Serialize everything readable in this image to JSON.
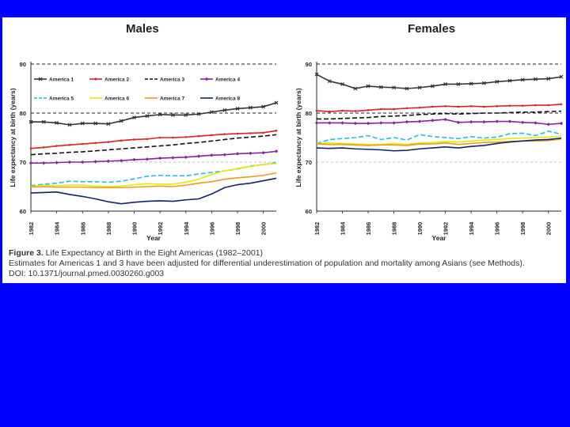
{
  "chart_data": [
    {
      "type": "line",
      "title": "Males",
      "xlabel": "Year",
      "ylabel": "Life expectancy at birth (years)",
      "ylim": [
        60,
        90
      ],
      "xlim": [
        1982,
        2001
      ],
      "yticks": [
        "90",
        "80",
        "70",
        "60"
      ],
      "xticks": [
        "1982",
        "1984",
        "1986",
        "1988",
        "1990",
        "1992",
        "1994",
        "1996",
        "1998",
        "2000"
      ],
      "legend": [
        "America 1",
        "America 2",
        "America 3",
        "America 4",
        "America 5",
        "America 6",
        "America 7",
        "America 8"
      ],
      "x": [
        1982,
        1983,
        1984,
        1985,
        1986,
        1987,
        1988,
        1989,
        1990,
        1991,
        1992,
        1993,
        1994,
        1995,
        1996,
        1997,
        1998,
        1999,
        2000,
        2001
      ],
      "series": [
        {
          "name": "America 1",
          "color": "#333333",
          "dash": "solid",
          "marker": "x",
          "values": [
            78.2,
            78.2,
            78.0,
            77.6,
            77.9,
            77.9,
            77.8,
            78.4,
            79.1,
            79.4,
            79.7,
            79.6,
            79.6,
            79.8,
            80.2,
            80.6,
            80.9,
            81.1,
            81.3,
            82.1
          ]
        },
        {
          "name": "America 2",
          "color": "#dd2222",
          "dash": "solid",
          "marker": "dot",
          "values": [
            72.8,
            73.0,
            73.3,
            73.5,
            73.7,
            73.9,
            74.1,
            74.4,
            74.6,
            74.7,
            75.0,
            75.0,
            75.1,
            75.3,
            75.5,
            75.7,
            75.8,
            75.9,
            76.0,
            76.4
          ]
        },
        {
          "name": "America 3",
          "color": "#111111",
          "dash": "dash",
          "marker": "none",
          "values": [
            71.5,
            71.7,
            71.8,
            72.0,
            72.1,
            72.3,
            72.5,
            72.7,
            72.9,
            73.1,
            73.3,
            73.5,
            73.8,
            74.0,
            74.3,
            74.6,
            74.9,
            75.1,
            75.3,
            75.6
          ]
        },
        {
          "name": "America 4",
          "color": "#882299",
          "dash": "solid",
          "marker": "diamond",
          "values": [
            69.8,
            69.8,
            69.9,
            70.0,
            70.0,
            70.1,
            70.2,
            70.3,
            70.5,
            70.6,
            70.8,
            70.9,
            71.0,
            71.2,
            71.4,
            71.5,
            71.7,
            71.8,
            71.9,
            72.2
          ]
        },
        {
          "name": "America 5",
          "color": "#22bbee",
          "dash": "dash",
          "marker": "none",
          "values": [
            65.2,
            65.5,
            65.7,
            66.1,
            66.0,
            66.0,
            65.9,
            66.1,
            66.6,
            67.1,
            67.3,
            67.2,
            67.2,
            67.6,
            67.9,
            68.2,
            68.6,
            69.2,
            69.5,
            69.9
          ]
        },
        {
          "name": "America 6",
          "color": "#e8e800",
          "dash": "solid",
          "marker": "none",
          "values": [
            65.0,
            65.3,
            65.2,
            65.3,
            65.3,
            65.1,
            65.0,
            65.1,
            65.4,
            65.6,
            65.5,
            65.5,
            65.9,
            66.5,
            67.5,
            68.2,
            68.7,
            69.1,
            69.5,
            69.7
          ]
        },
        {
          "name": "America 7",
          "color": "#ee9922",
          "dash": "solid",
          "marker": "none",
          "values": [
            64.9,
            65.0,
            64.9,
            64.9,
            64.9,
            64.8,
            64.8,
            64.8,
            64.9,
            65.0,
            65.1,
            65.0,
            65.3,
            65.7,
            66.0,
            66.5,
            66.8,
            67.0,
            67.3,
            67.8
          ]
        },
        {
          "name": "America 8",
          "color": "#112266",
          "dash": "solid",
          "marker": "none",
          "values": [
            63.7,
            63.8,
            63.9,
            63.4,
            63.0,
            62.5,
            61.9,
            61.5,
            61.8,
            62.0,
            62.1,
            62.0,
            62.3,
            62.5,
            63.5,
            64.8,
            65.4,
            65.7,
            66.2,
            66.7
          ]
        }
      ]
    },
    {
      "type": "line",
      "title": "Females",
      "xlabel": "Year",
      "ylabel": "Life expectancy at birth (years)",
      "ylim": [
        60,
        90
      ],
      "xlim": [
        1982,
        2001
      ],
      "yticks": [
        "90",
        "80",
        "70",
        "60"
      ],
      "xticks": [
        "1982",
        "1984",
        "1986",
        "1988",
        "1990",
        "1992",
        "1994",
        "1996",
        "1998",
        "2000"
      ],
      "x": [
        1982,
        1983,
        1984,
        1985,
        1986,
        1987,
        1988,
        1989,
        1990,
        1991,
        1992,
        1993,
        1994,
        1995,
        1996,
        1997,
        1998,
        1999,
        2000,
        2001
      ],
      "series": [
        {
          "name": "America 1",
          "color": "#333333",
          "dash": "solid",
          "marker": "x",
          "values": [
            87.9,
            86.5,
            85.9,
            85.0,
            85.5,
            85.3,
            85.2,
            85.0,
            85.2,
            85.5,
            85.9,
            85.9,
            86.0,
            86.1,
            86.4,
            86.6,
            86.8,
            86.9,
            87.0,
            87.4
          ]
        },
        {
          "name": "America 2",
          "color": "#dd2222",
          "dash": "solid",
          "marker": "dot",
          "values": [
            80.5,
            80.3,
            80.5,
            80.4,
            80.6,
            80.8,
            80.8,
            81.0,
            81.1,
            81.3,
            81.4,
            81.3,
            81.4,
            81.3,
            81.4,
            81.5,
            81.5,
            81.6,
            81.6,
            81.8
          ]
        },
        {
          "name": "America 3",
          "color": "#111111",
          "dash": "dash",
          "marker": "none",
          "values": [
            78.8,
            78.8,
            78.9,
            79.0,
            79.1,
            79.3,
            79.4,
            79.5,
            79.7,
            79.8,
            79.9,
            79.8,
            79.9,
            80.0,
            80.0,
            80.1,
            80.2,
            80.2,
            80.3,
            80.4
          ]
        },
        {
          "name": "America 4",
          "color": "#882299",
          "dash": "solid",
          "marker": "diamond",
          "values": [
            78.0,
            78.0,
            78.0,
            77.9,
            77.9,
            78.0,
            78.0,
            78.2,
            78.3,
            78.5,
            78.7,
            78.1,
            78.2,
            78.2,
            78.3,
            78.3,
            78.1,
            78.0,
            77.7,
            77.9
          ]
        },
        {
          "name": "America 5",
          "color": "#22bbee",
          "dash": "dash",
          "marker": "none",
          "values": [
            73.8,
            74.6,
            74.8,
            75.0,
            75.4,
            74.6,
            75.0,
            74.5,
            75.6,
            75.2,
            75.0,
            74.8,
            75.2,
            74.9,
            75.1,
            75.8,
            75.9,
            75.4,
            76.3,
            75.7
          ]
        },
        {
          "name": "America 6",
          "color": "#e8e800",
          "dash": "solid",
          "marker": "none",
          "values": [
            73.8,
            73.9,
            73.8,
            73.7,
            73.6,
            73.6,
            73.8,
            73.6,
            73.9,
            74.0,
            74.2,
            74.1,
            74.3,
            74.5,
            74.6,
            74.8,
            74.9,
            75.0,
            75.1,
            75.3
          ]
        },
        {
          "name": "America 7",
          "color": "#ee9922",
          "dash": "solid",
          "marker": "none",
          "values": [
            73.7,
            73.6,
            73.6,
            73.5,
            73.4,
            73.5,
            73.5,
            73.4,
            73.7,
            73.7,
            73.9,
            73.6,
            73.8,
            74.0,
            74.1,
            74.2,
            74.3,
            74.3,
            74.4,
            74.7
          ]
        },
        {
          "name": "America 8",
          "color": "#112266",
          "dash": "solid",
          "marker": "none",
          "values": [
            72.9,
            72.8,
            72.9,
            72.7,
            72.6,
            72.5,
            72.3,
            72.4,
            72.7,
            72.9,
            73.1,
            72.9,
            73.2,
            73.4,
            73.8,
            74.1,
            74.3,
            74.5,
            74.6,
            74.9
          ]
        }
      ]
    }
  ],
  "caption": {
    "figure_label": "Figure 3.",
    "figure_title": " Life Expectancy at Birth in the Eight Americas (1982–2001)",
    "note": "Estimates for Americas 1 and 3 have been adjusted for differential underestimation of population and mortality among Asians (see Methods).",
    "doi": "DOI: 10.1371/journal.pmed.0030260.g003"
  }
}
